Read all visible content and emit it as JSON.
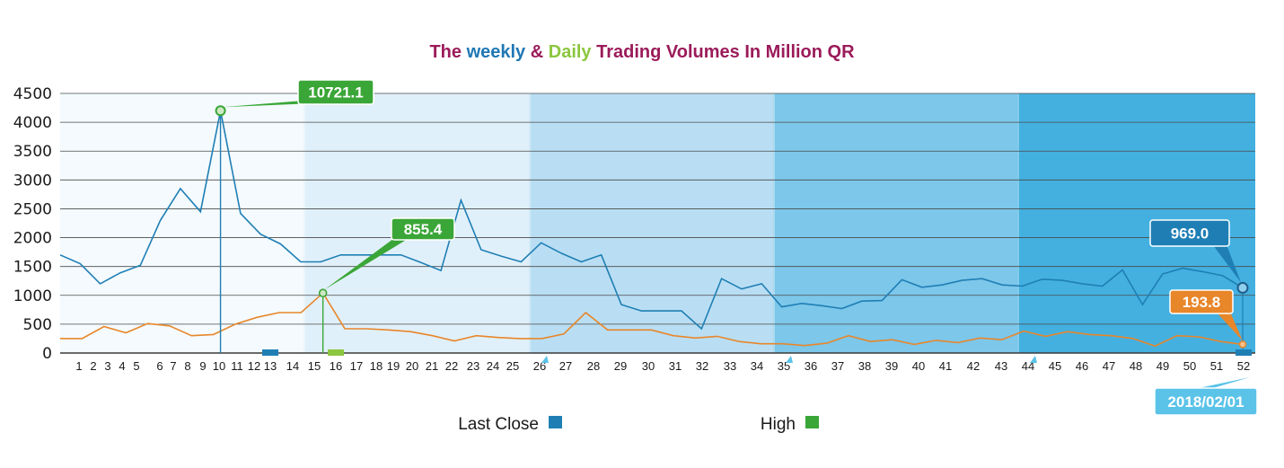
{
  "chart_data": {
    "type": "line",
    "title_parts": [
      {
        "text": "The ",
        "color": "#9b1b5a"
      },
      {
        "text": "weekly",
        "color": "#1f77b4"
      },
      {
        "text": " & ",
        "color": "#9b1b5a"
      },
      {
        "text": "Daily",
        "color": "#8cc63f"
      },
      {
        "text": " Trading Volumes In Million QR",
        "color": "#9b1b5a"
      }
    ],
    "ylim": [
      0,
      4500
    ],
    "yticks": [
      "0",
      "500",
      "1000",
      "1500",
      "2000",
      "2500",
      "3000",
      "3500",
      "4000",
      "4500"
    ],
    "categories": [
      "1",
      "2",
      "3",
      "4",
      "5",
      "6",
      "7",
      "8",
      "9",
      "10",
      "11",
      "12",
      "13",
      "14",
      "15",
      "16",
      "17",
      "18",
      "19",
      "20",
      "21",
      "22",
      "23",
      "24",
      "25",
      "26",
      "27",
      "28",
      "29",
      "30",
      "31",
      "32",
      "33",
      "34",
      "35",
      "36",
      "37",
      "38",
      "39",
      "40",
      "41",
      "42",
      "43",
      "44",
      "45",
      "46",
      "47",
      "48",
      "49",
      "50",
      "51",
      "52"
    ],
    "x_ticks": [
      "1",
      "2",
      "3",
      "4",
      "5",
      "6",
      "7",
      "8",
      "9",
      "10",
      "11",
      "12",
      "13",
      "14",
      "15",
      "16",
      "17",
      "18",
      "19",
      "20",
      "21",
      "22",
      "23",
      "24",
      "25",
      "26",
      "27",
      "28",
      "29",
      "30",
      "31",
      "32",
      "33",
      "34",
      "35",
      "36",
      "37",
      "38",
      "39",
      "40",
      "41",
      "42",
      "43",
      "44",
      "45",
      "46",
      "47",
      "48",
      "49",
      "50",
      "51",
      "52"
    ],
    "grid": true,
    "series": [
      {
        "name": "Last Close",
        "color": "#1f7fb5",
        "points": [
          [
            0,
            1700
          ],
          [
            1,
            1550
          ],
          [
            2,
            1200
          ],
          [
            3,
            1390
          ],
          [
            4,
            1520
          ],
          [
            5,
            2300
          ],
          [
            6,
            2850
          ],
          [
            7,
            2450
          ],
          [
            8,
            4200
          ],
          [
            9,
            2420
          ],
          [
            10,
            2060
          ],
          [
            11,
            1890
          ],
          [
            12,
            1580
          ],
          [
            13,
            1580
          ],
          [
            14,
            1700
          ],
          [
            15,
            1700
          ],
          [
            16,
            1700
          ],
          [
            17,
            1700
          ],
          [
            18,
            1570
          ],
          [
            19,
            1430
          ],
          [
            20,
            2650
          ],
          [
            21,
            1790
          ],
          [
            22,
            1680
          ],
          [
            23,
            1580
          ],
          [
            24,
            1910
          ],
          [
            25,
            1730
          ],
          [
            26,
            1580
          ],
          [
            27,
            1700
          ],
          [
            28,
            840
          ],
          [
            29,
            730
          ],
          [
            30,
            730
          ],
          [
            31,
            730
          ],
          [
            32,
            420
          ],
          [
            33,
            1290
          ],
          [
            34,
            1110
          ],
          [
            35,
            1200
          ],
          [
            36,
            800
          ],
          [
            37,
            860
          ],
          [
            38,
            820
          ],
          [
            39,
            770
          ],
          [
            40,
            900
          ],
          [
            41,
            910
          ],
          [
            42,
            1270
          ],
          [
            43,
            1140
          ],
          [
            44,
            1180
          ],
          [
            45,
            1260
          ],
          [
            46,
            1290
          ],
          [
            47,
            1180
          ],
          [
            48,
            1160
          ],
          [
            49,
            1280
          ],
          [
            50,
            1260
          ],
          [
            51,
            1200
          ],
          [
            52,
            1160
          ],
          [
            53,
            1440
          ],
          [
            54,
            840
          ],
          [
            55,
            1370
          ],
          [
            56,
            1470
          ],
          [
            57,
            1410
          ],
          [
            58,
            1340
          ],
          [
            59,
            1130
          ]
        ]
      },
      {
        "name": "High",
        "color": "#e8862a",
        "points": [
          [
            0,
            250
          ],
          [
            1,
            250
          ],
          [
            2,
            460
          ],
          [
            3,
            350
          ],
          [
            4,
            510
          ],
          [
            5,
            470
          ],
          [
            6,
            300
          ],
          [
            7,
            320
          ],
          [
            8,
            500
          ],
          [
            9,
            620
          ],
          [
            10,
            700
          ],
          [
            11,
            700
          ],
          [
            12,
            1040
          ],
          [
            13,
            420
          ],
          [
            14,
            420
          ],
          [
            15,
            400
          ],
          [
            16,
            370
          ],
          [
            17,
            300
          ],
          [
            18,
            210
          ],
          [
            19,
            300
          ],
          [
            20,
            270
          ],
          [
            21,
            250
          ],
          [
            22,
            250
          ],
          [
            23,
            330
          ],
          [
            24,
            700
          ],
          [
            25,
            400
          ],
          [
            26,
            400
          ],
          [
            27,
            400
          ],
          [
            28,
            300
          ],
          [
            29,
            260
          ],
          [
            30,
            290
          ],
          [
            31,
            200
          ],
          [
            32,
            160
          ],
          [
            33,
            160
          ],
          [
            34,
            130
          ],
          [
            35,
            170
          ],
          [
            36,
            300
          ],
          [
            37,
            200
          ],
          [
            38,
            230
          ],
          [
            39,
            150
          ],
          [
            40,
            220
          ],
          [
            41,
            180
          ],
          [
            42,
            260
          ],
          [
            43,
            230
          ],
          [
            44,
            380
          ],
          [
            45,
            290
          ],
          [
            46,
            370
          ],
          [
            47,
            320
          ],
          [
            48,
            300
          ],
          [
            49,
            250
          ],
          [
            50,
            120
          ],
          [
            51,
            300
          ],
          [
            52,
            280
          ],
          [
            53,
            200
          ],
          [
            54,
            150
          ]
        ]
      }
    ],
    "bands": [
      {
        "from_week": 15,
        "to_week": 26
      },
      {
        "from_week": 26,
        "to_week": 35
      },
      {
        "from_week": 35,
        "to_week": 44
      },
      {
        "from_week": 44,
        "to_week": 52
      }
    ],
    "annotations": [
      {
        "label": "10721.1",
        "color": "#3aa637",
        "week": "13"
      },
      {
        "label": "855.4",
        "color": "#3aa637",
        "week": "16"
      },
      {
        "label": "969.0",
        "color": "#1f7fb5",
        "week": "52"
      },
      {
        "label": "193.8",
        "color": "#e8862a",
        "week": "52"
      },
      {
        "label": "2018/02/01",
        "color": "#5bc3e8",
        "week": "52"
      }
    ],
    "highlight_weeks": [
      {
        "week": "13",
        "color": "#1f7fb5"
      },
      {
        "week": "16",
        "color": "#8cc63f"
      },
      {
        "week": "52",
        "color": "#1f7fb5"
      }
    ],
    "legend": [
      {
        "label": "Last Close",
        "color": "#1f7fb5"
      },
      {
        "label": "High",
        "color": "#3aa637"
      }
    ],
    "legend_position": "bottom-center"
  }
}
